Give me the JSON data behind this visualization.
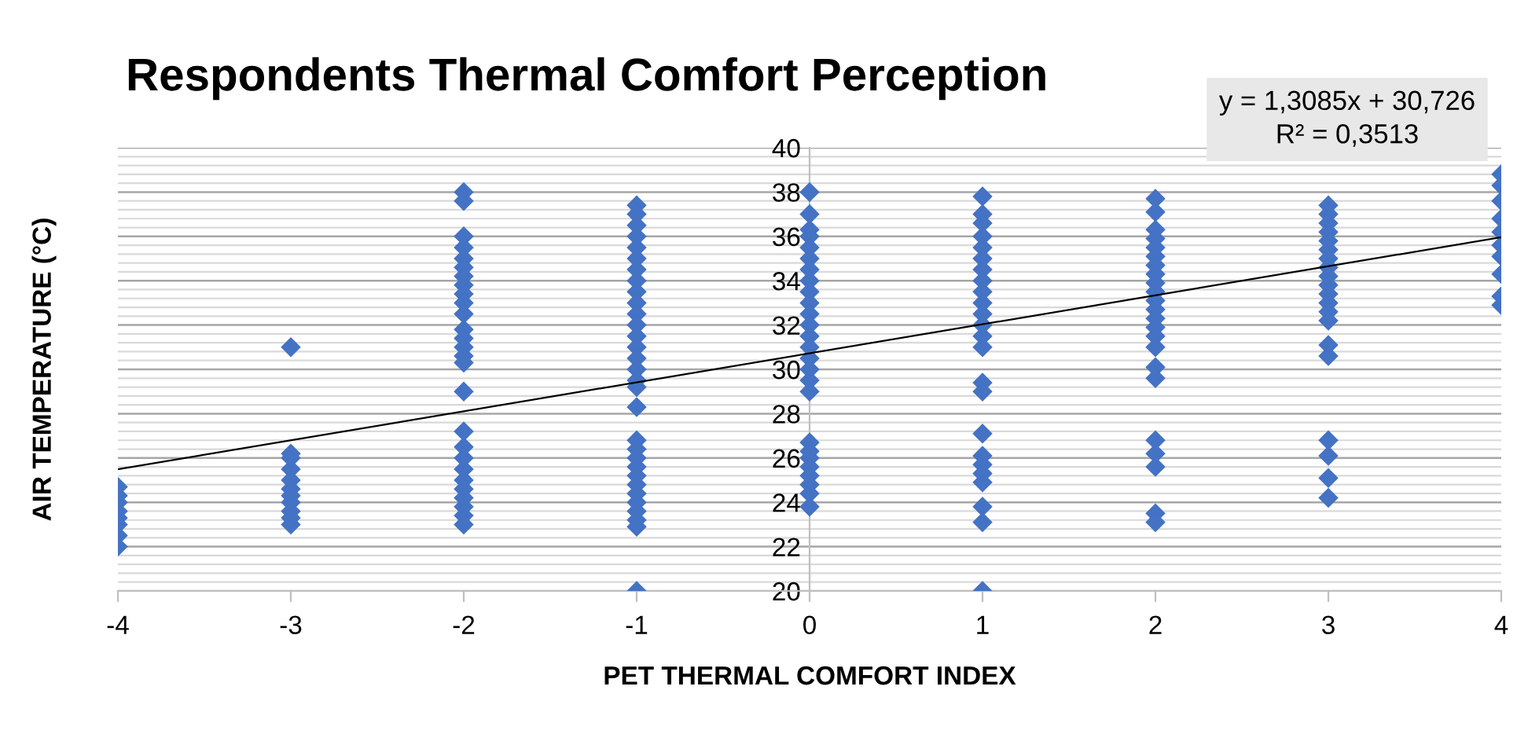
{
  "chart_data": {
    "type": "scatter",
    "title": "Respondents Thermal Comfort Perception",
    "xlabel": "PET THERMAL COMFORT INDEX",
    "ylabel": "AIR TEMPERATURE (°C)",
    "annotations": [
      "y = 1,3085x + 30,726\nR² = 0,3513"
    ],
    "xlim": [
      -4,
      4
    ],
    "xticks": [
      -4,
      -3,
      -2,
      -1,
      0,
      1,
      2,
      3,
      4
    ],
    "ylim": [
      20,
      40
    ],
    "yticks": [
      20,
      22,
      24,
      26,
      28,
      30,
      32,
      34,
      36,
      38,
      40
    ],
    "grid": "y",
    "marker": "diamond",
    "series": [
      {
        "type": "scatter",
        "color": "#4472c4",
        "x": [
          -4,
          -4,
          -4,
          -4,
          -4,
          -4,
          -4,
          -4,
          -3,
          -3,
          -3,
          -3,
          -3,
          -3,
          -3,
          -3,
          -3,
          -3,
          -3,
          -2,
          -2,
          -2,
          -2,
          -2,
          -2,
          -2,
          -2,
          -2,
          -2,
          -2,
          -2,
          -2,
          -2,
          -2,
          -2,
          -2,
          -2,
          -2,
          -2,
          -2,
          -2,
          -2,
          -2,
          -2,
          -2,
          -2,
          -1,
          -1,
          -1,
          -1,
          -1,
          -1,
          -1,
          -1,
          -1,
          -1,
          -1,
          -1,
          -1,
          -1,
          -1,
          -1,
          -1,
          -1,
          -1,
          -1,
          -1,
          -1,
          -1,
          -1,
          -1,
          -1,
          -1,
          -1,
          -1,
          -1,
          -1,
          0,
          0,
          0,
          0,
          0,
          0,
          0,
          0,
          0,
          0,
          0,
          0,
          0,
          0,
          0,
          0,
          0,
          0,
          0,
          0,
          0,
          0,
          0,
          0,
          0,
          0,
          1,
          1,
          1,
          1,
          1,
          1,
          1,
          1,
          1,
          1,
          1,
          1,
          1,
          1,
          1,
          1,
          1,
          1,
          1,
          1,
          1,
          1,
          1,
          1,
          2,
          2,
          2,
          2,
          2,
          2,
          2,
          2,
          2,
          2,
          2,
          2,
          2,
          2,
          2,
          2,
          2,
          2,
          2,
          2,
          2,
          2,
          2,
          3,
          3,
          3,
          3,
          3,
          3,
          3,
          3,
          3,
          3,
          3,
          3,
          3,
          3,
          3,
          3,
          3,
          3,
          3,
          3,
          4,
          4,
          4,
          4,
          4,
          4,
          4,
          4,
          4,
          4
        ],
        "values": [
          22.0,
          22.5,
          23.0,
          23.3,
          23.6,
          24.0,
          24.3,
          24.7,
          31.0,
          23.0,
          23.3,
          23.6,
          24.0,
          24.3,
          24.6,
          25.0,
          25.5,
          26.0,
          26.2,
          38.0,
          37.6,
          36.0,
          35.5,
          35.0,
          34.6,
          34.2,
          33.8,
          33.4,
          33.0,
          32.5,
          31.8,
          31.4,
          31.0,
          30.6,
          30.3,
          29.0,
          27.2,
          26.5,
          26.0,
          25.5,
          25.0,
          24.6,
          24.2,
          23.8,
          23.4,
          23.0,
          37.4,
          37.0,
          36.5,
          36.0,
          35.5,
          35.0,
          34.5,
          34.0,
          33.5,
          33.0,
          32.5,
          32.0,
          31.5,
          31.0,
          30.5,
          30.0,
          29.5,
          29.2,
          28.3,
          26.8,
          26.4,
          26.0,
          25.6,
          25.2,
          24.8,
          24.4,
          24.0,
          23.6,
          23.2,
          22.9,
          20.0,
          38.0,
          37.0,
          36.3,
          36.0,
          35.5,
          35.0,
          34.5,
          34.0,
          33.5,
          33.0,
          32.5,
          32.0,
          31.5,
          31.0,
          30.5,
          30.0,
          29.5,
          29.0,
          26.7,
          26.3,
          26.0,
          25.6,
          25.2,
          24.8,
          24.4,
          23.8,
          37.8,
          37.0,
          36.6,
          36.0,
          35.5,
          35.0,
          34.5,
          34.0,
          33.5,
          33.0,
          32.5,
          32.0,
          31.5,
          31.0,
          29.4,
          29.0,
          27.1,
          26.1,
          25.7,
          25.3,
          24.9,
          23.8,
          23.1,
          20.0,
          37.7,
          37.1,
          36.3,
          35.9,
          35.5,
          35.1,
          34.7,
          34.3,
          33.9,
          33.5,
          33.1,
          32.7,
          32.3,
          31.9,
          31.5,
          31.0,
          30.1,
          29.6,
          26.8,
          26.2,
          25.6,
          23.5,
          23.1,
          37.4,
          37.0,
          36.6,
          36.2,
          35.8,
          35.4,
          35.0,
          34.6,
          34.2,
          33.8,
          33.4,
          33.0,
          32.6,
          32.2,
          31.1,
          30.6,
          26.8,
          26.1,
          25.1,
          24.2,
          38.8,
          38.3,
          37.6,
          36.8,
          36.2,
          35.6,
          35.1,
          34.3,
          33.3,
          32.9
        ]
      },
      {
        "type": "line",
        "color": "#000000",
        "x": [
          -4,
          4
        ],
        "values": [
          25.49,
          35.96
        ],
        "marker": "none"
      }
    ]
  }
}
